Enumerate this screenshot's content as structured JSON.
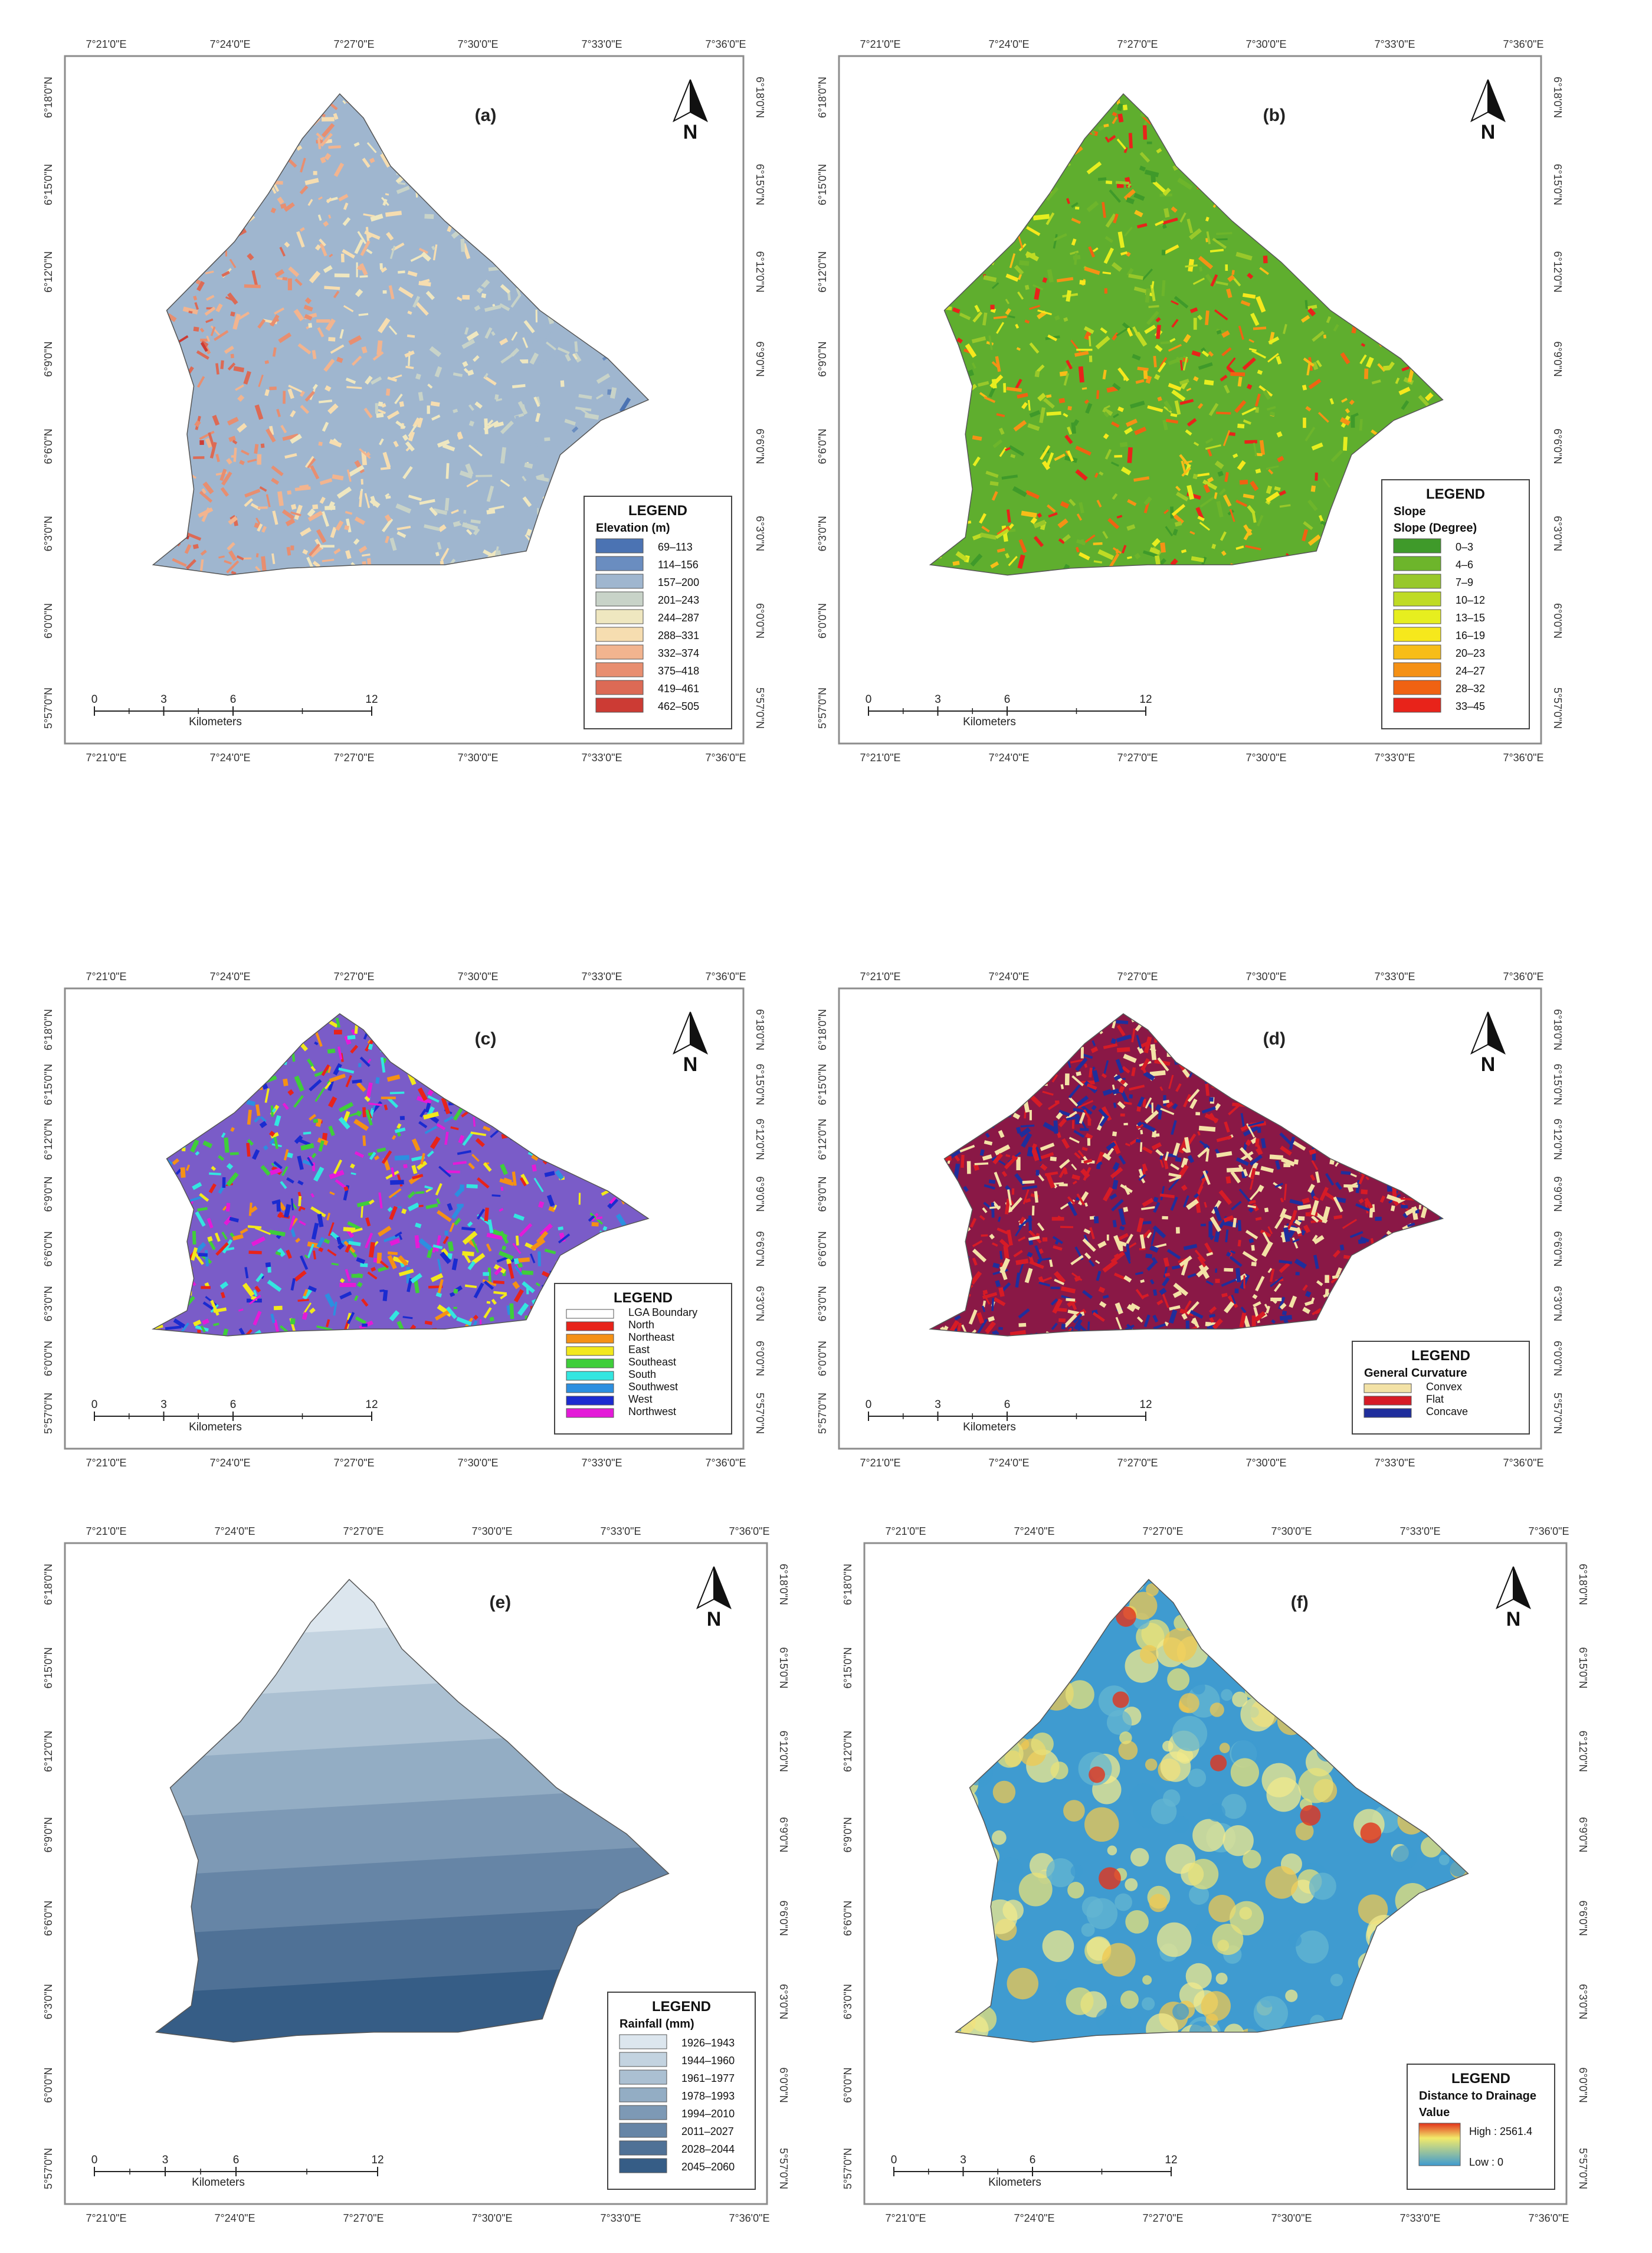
{
  "lon_labels": [
    "7°21'0\"E",
    "7°24'0\"E",
    "7°27'0\"E",
    "7°30'0\"E",
    "7°33'0\"E",
    "7°36'0\"E"
  ],
  "lat_labels": [
    "6°18'0\"N",
    "6°15'0\"N",
    "6°12'0\"N",
    "6°9'0\"N",
    "6°6'0\"N",
    "6°3'0\"N",
    "6°0'0\"N",
    "5°57'0\"N"
  ],
  "north_label": "N",
  "scale": {
    "ticks": [
      "0",
      "3",
      "6",
      "12"
    ],
    "unit": "Kilometers"
  },
  "legend_title": "LEGEND",
  "panels": [
    {
      "label": "(a)",
      "fill": "#9fb6cf",
      "legend": {
        "subtitles": [
          "Elevation (m)"
        ],
        "items": [
          {
            "label": "69–113",
            "color": "#4b73b3"
          },
          {
            "label": "114–156",
            "color": "#6a8dc0"
          },
          {
            "label": "157–200",
            "color": "#9fb6cf"
          },
          {
            "label": "201–243",
            "color": "#c8d3c8"
          },
          {
            "label": "244–287",
            "color": "#efe7c0"
          },
          {
            "label": "288–331",
            "color": "#f6ddb0"
          },
          {
            "label": "332–374",
            "color": "#f2b48f"
          },
          {
            "label": "375–418",
            "color": "#e88e70"
          },
          {
            "label": "419–461",
            "color": "#dc6a55"
          },
          {
            "label": "462–505",
            "color": "#cc3b34"
          }
        ]
      }
    },
    {
      "label": "(b)",
      "fill": "#5fae2e",
      "legend": {
        "subtitles": [
          "Slope",
          "Slope (Degree)"
        ],
        "items": [
          {
            "label": "0–3",
            "color": "#3f9a2a"
          },
          {
            "label": "4–6",
            "color": "#6db52b"
          },
          {
            "label": "7–9",
            "color": "#98c82a"
          },
          {
            "label": "10–12",
            "color": "#bfdb24"
          },
          {
            "label": "13–15",
            "color": "#e6ee1f"
          },
          {
            "label": "16–19",
            "color": "#f6e81c"
          },
          {
            "label": "20–23",
            "color": "#f7bd18"
          },
          {
            "label": "24–27",
            "color": "#f59115"
          },
          {
            "label": "28–32",
            "color": "#f06212"
          },
          {
            "label": "33–45",
            "color": "#e8231a"
          }
        ]
      }
    },
    {
      "label": "(c)",
      "fill": "#7a5cc8",
      "legend": {
        "subtitles": [],
        "items": [
          {
            "label": "LGA Boundary",
            "color": "#ffffff"
          },
          {
            "label": "North",
            "color": "#e8231a"
          },
          {
            "label": "Northeast",
            "color": "#f59115"
          },
          {
            "label": "East",
            "color": "#f2e81c"
          },
          {
            "label": "Southeast",
            "color": "#3fce3a"
          },
          {
            "label": "South",
            "color": "#33e6e0"
          },
          {
            "label": "Southwest",
            "color": "#2c8fe0"
          },
          {
            "label": "West",
            "color": "#1a2bd0"
          },
          {
            "label": "Northwest",
            "color": "#e41ad8"
          }
        ]
      }
    },
    {
      "label": "(d)",
      "fill": "#8a1846",
      "legend": {
        "subtitles": [
          "General Curvature"
        ],
        "items": [
          {
            "label": "Convex",
            "color": "#f3e2a6"
          },
          {
            "label": "Flat",
            "color": "#d61b26"
          },
          {
            "label": "Concave",
            "color": "#1f2e9c"
          }
        ]
      }
    },
    {
      "label": "(e)",
      "fill": "#7e99b6",
      "legend": {
        "subtitles": [
          "Rainfall (mm)"
        ],
        "items": [
          {
            "label": "1926–1943",
            "color": "#dce6ee"
          },
          {
            "label": "1944–1960",
            "color": "#c3d3e0"
          },
          {
            "label": "1961–1977",
            "color": "#abc0d2"
          },
          {
            "label": "1978–1993",
            "color": "#93adc4"
          },
          {
            "label": "1994–2010",
            "color": "#7d99b5"
          },
          {
            "label": "2011–2027",
            "color": "#6685a6"
          },
          {
            "label": "2028–2044",
            "color": "#4f7196"
          },
          {
            "label": "2045–2060",
            "color": "#365d86"
          }
        ]
      }
    },
    {
      "label": "(f)",
      "fill": "#3f9bd0",
      "legend": {
        "subtitles": [
          "Distance to Drainage",
          "Value"
        ],
        "items": [],
        "ramp_high": "High : 2561.4",
        "ramp_low": "Low : 0"
      }
    }
  ]
}
